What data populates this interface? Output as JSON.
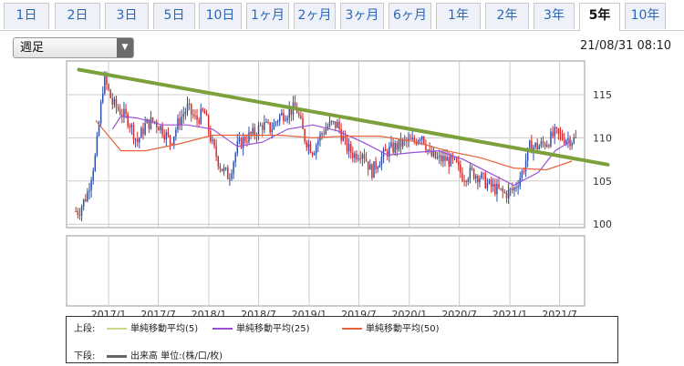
{
  "tabs": [
    {
      "label": "1日"
    },
    {
      "label": "2日"
    },
    {
      "label": "3日"
    },
    {
      "label": "5日"
    },
    {
      "label": "10日"
    },
    {
      "label": "1ヶ月"
    },
    {
      "label": "2ヶ月"
    },
    {
      "label": "3ヶ月"
    },
    {
      "label": "6ヶ月"
    },
    {
      "label": "1年"
    },
    {
      "label": "2年"
    },
    {
      "label": "3年"
    },
    {
      "label": "5年",
      "active": true
    },
    {
      "label": "10年"
    }
  ],
  "period_select": {
    "value": "週足"
  },
  "timestamp": "21/08/31 08:10",
  "legend": {
    "upper_label": "上段:",
    "lower_label": "下段:",
    "items": [
      {
        "name": "単純移動平均(5)",
        "color": "#c8d88a"
      },
      {
        "name": "単純移動平均(25)",
        "color": "#9a4fd6"
      },
      {
        "name": "単純移動平均(50)",
        "color": "#e8623a"
      }
    ],
    "volume": {
      "name": "出来高 単位:(株/口/枚)",
      "color": "#666666"
    }
  },
  "colors": {
    "up": "#2e4fa8",
    "down": "#d32a2a",
    "trendline": "#7ba03c",
    "grid": "#cccccc"
  },
  "chart_data": {
    "type": "candlestick",
    "x_tick_labels": [
      "2017/1",
      "2017/7",
      "2018/1",
      "2018/7",
      "2019/1",
      "2019/7",
      "2020/1",
      "2020/7",
      "2021/1",
      "2021/7"
    ],
    "y_ticks": [
      100,
      105,
      110,
      115
    ],
    "ylim": [
      99.6,
      118.9
    ],
    "price_path": [
      {
        "date": "2016-09",
        "value": 101.5
      },
      {
        "date": "2016-10",
        "value": 103.5
      },
      {
        "date": "2016-11",
        "value": 108
      },
      {
        "date": "2016-12",
        "value": 117
      },
      {
        "date": "2017-01",
        "value": 114
      },
      {
        "date": "2017-02",
        "value": 113
      },
      {
        "date": "2017-03",
        "value": 112
      },
      {
        "date": "2017-04",
        "value": 109.5
      },
      {
        "date": "2017-05",
        "value": 111.5
      },
      {
        "date": "2017-06",
        "value": 112
      },
      {
        "date": "2017-07",
        "value": 111
      },
      {
        "date": "2017-08",
        "value": 109.5
      },
      {
        "date": "2017-09",
        "value": 112
      },
      {
        "date": "2017-10",
        "value": 113.5
      },
      {
        "date": "2017-11",
        "value": 112
      },
      {
        "date": "2017-12",
        "value": 113
      },
      {
        "date": "2018-01",
        "value": 109
      },
      {
        "date": "2018-02",
        "value": 106.5
      },
      {
        "date": "2018-03",
        "value": 105.5
      },
      {
        "date": "2018-04",
        "value": 109
      },
      {
        "date": "2018-05",
        "value": 110
      },
      {
        "date": "2018-06",
        "value": 110.5
      },
      {
        "date": "2018-07",
        "value": 111.5
      },
      {
        "date": "2018-08",
        "value": 111
      },
      {
        "date": "2018-09",
        "value": 112.5
      },
      {
        "date": "2018-10",
        "value": 113
      },
      {
        "date": "2018-11",
        "value": 113.5
      },
      {
        "date": "2018-12",
        "value": 110
      },
      {
        "date": "2019-01",
        "value": 108.5
      },
      {
        "date": "2019-02",
        "value": 110.5
      },
      {
        "date": "2019-03",
        "value": 111.5
      },
      {
        "date": "2019-04",
        "value": 111.5
      },
      {
        "date": "2019-05",
        "value": 109
      },
      {
        "date": "2019-06",
        "value": 108
      },
      {
        "date": "2019-07",
        "value": 108.5
      },
      {
        "date": "2019-08",
        "value": 106
      },
      {
        "date": "2019-09",
        "value": 107.5
      },
      {
        "date": "2019-10",
        "value": 108.5
      },
      {
        "date": "2019-11",
        "value": 109
      },
      {
        "date": "2019-12",
        "value": 109.5
      },
      {
        "date": "2020-01",
        "value": 109.5
      },
      {
        "date": "2020-02",
        "value": 110.5
      },
      {
        "date": "2020-03",
        "value": 108
      },
      {
        "date": "2020-04",
        "value": 107.5
      },
      {
        "date": "2020-05",
        "value": 107.5
      },
      {
        "date": "2020-06",
        "value": 107
      },
      {
        "date": "2020-07",
        "value": 105.5
      },
      {
        "date": "2020-08",
        "value": 106
      },
      {
        "date": "2020-09",
        "value": 105.5
      },
      {
        "date": "2020-10",
        "value": 104.5
      },
      {
        "date": "2020-11",
        "value": 104
      },
      {
        "date": "2020-12",
        "value": 103.5
      },
      {
        "date": "2021-01",
        "value": 104
      },
      {
        "date": "2021-02",
        "value": 106
      },
      {
        "date": "2021-03",
        "value": 109
      },
      {
        "date": "2021-04",
        "value": 109
      },
      {
        "date": "2021-05",
        "value": 109.5
      },
      {
        "date": "2021-06",
        "value": 110.5
      },
      {
        "date": "2021-07",
        "value": 110
      },
      {
        "date": "2021-08",
        "value": 109.8
      }
    ],
    "series": [
      {
        "name": "単純移動平均(25)",
        "values": [
          {
            "date": "2017-01",
            "value": 111
          },
          {
            "date": "2017-02",
            "value": 112.5
          },
          {
            "date": "2017-04",
            "value": 112.3
          },
          {
            "date": "2017-07",
            "value": 111.5
          },
          {
            "date": "2017-10",
            "value": 111.5
          },
          {
            "date": "2018-01",
            "value": 111
          },
          {
            "date": "2018-04",
            "value": 109
          },
          {
            "date": "2018-07",
            "value": 109.5
          },
          {
            "date": "2018-10",
            "value": 111
          },
          {
            "date": "2019-01",
            "value": 111.5
          },
          {
            "date": "2019-04",
            "value": 110.8
          },
          {
            "date": "2019-07",
            "value": 109.5
          },
          {
            "date": "2019-10",
            "value": 108
          },
          {
            "date": "2020-01",
            "value": 108.3
          },
          {
            "date": "2020-04",
            "value": 108.5
          },
          {
            "date": "2020-07",
            "value": 107.5
          },
          {
            "date": "2020-10",
            "value": 106
          },
          {
            "date": "2021-01",
            "value": 104.5
          },
          {
            "date": "2021-04",
            "value": 106
          },
          {
            "date": "2021-06",
            "value": 108.5
          },
          {
            "date": "2021-08",
            "value": 109.7
          }
        ]
      },
      {
        "name": "単純移動平均(50)",
        "values": [
          {
            "date": "2016-11",
            "value": 112
          },
          {
            "date": "2017-02",
            "value": 108.5
          },
          {
            "date": "2017-05",
            "value": 108.5
          },
          {
            "date": "2017-09",
            "value": 109.3
          },
          {
            "date": "2018-01",
            "value": 110.3
          },
          {
            "date": "2018-05",
            "value": 110.3
          },
          {
            "date": "2018-09",
            "value": 110.3
          },
          {
            "date": "2019-01",
            "value": 110
          },
          {
            "date": "2019-05",
            "value": 110.2
          },
          {
            "date": "2019-09",
            "value": 110.2
          },
          {
            "date": "2020-01",
            "value": 109.6
          },
          {
            "date": "2020-05",
            "value": 108.5
          },
          {
            "date": "2020-09",
            "value": 107.7
          },
          {
            "date": "2021-01",
            "value": 106.5
          },
          {
            "date": "2021-05",
            "value": 106.3
          },
          {
            "date": "2021-08",
            "value": 107.3
          }
        ]
      }
    ],
    "trendline": [
      {
        "date": "2016-09",
        "value": 117.9
      },
      {
        "date": "2021-09",
        "value": 106.9
      }
    ]
  }
}
